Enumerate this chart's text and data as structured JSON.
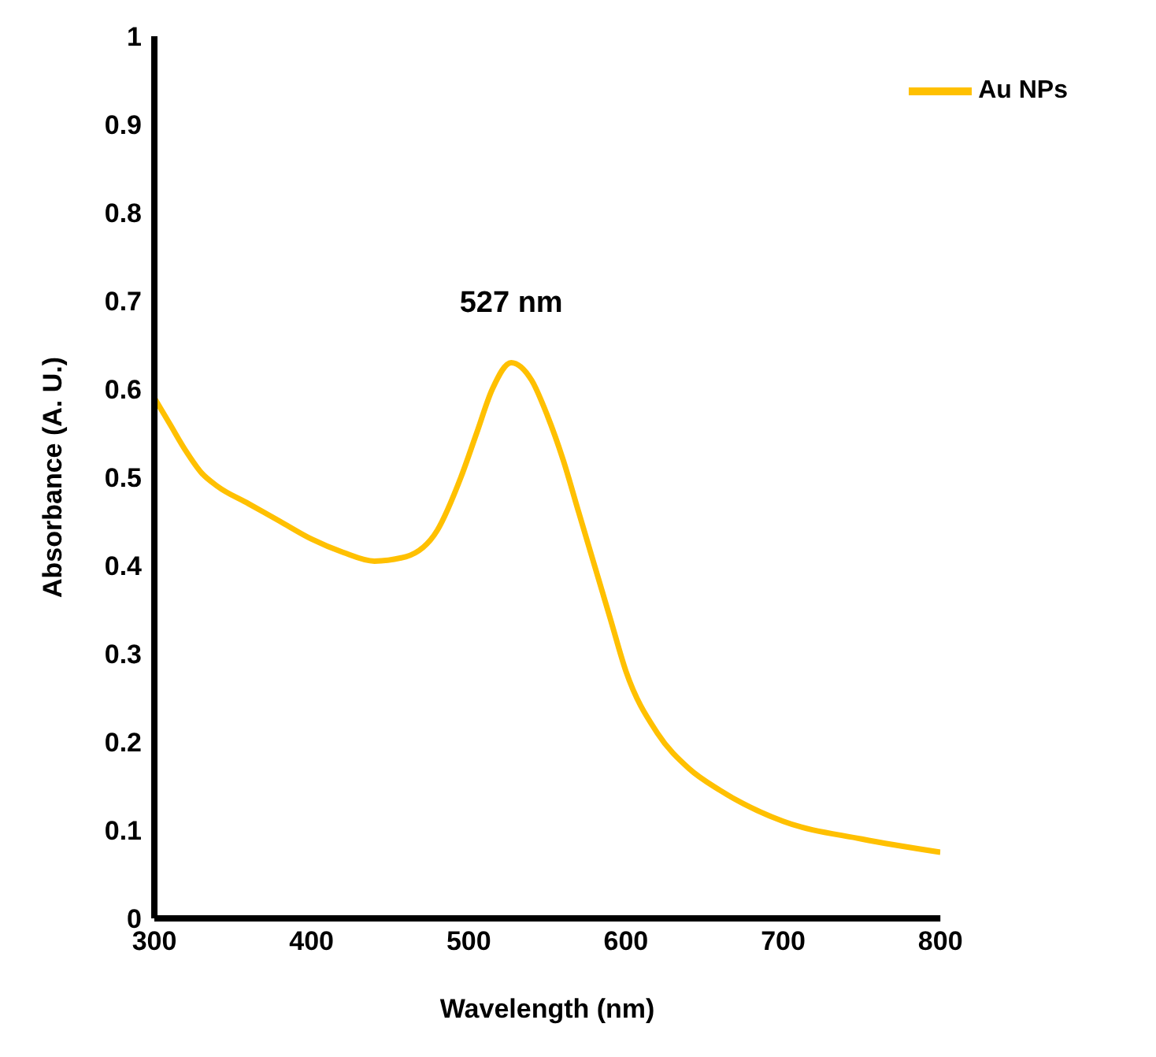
{
  "chart_data": {
    "type": "line",
    "xlabel": "Wavelength (nm)",
    "ylabel": "Absorbance (A. U.)",
    "x": [
      300,
      310,
      320,
      330,
      340,
      360,
      380,
      400,
      420,
      440,
      460,
      480,
      495,
      505,
      515,
      527,
      540,
      550,
      560,
      570,
      580,
      590,
      600,
      620,
      640,
      660,
      700,
      750,
      800
    ],
    "series": [
      {
        "name": "Au NPs",
        "color": "#ffc000",
        "values": [
          0.59,
          0.56,
          0.53,
          0.505,
          0.49,
          0.47,
          0.45,
          0.43,
          0.415,
          0.405,
          0.41,
          0.44,
          0.5,
          0.55,
          0.6,
          0.63,
          0.61,
          0.57,
          0.52,
          0.46,
          0.4,
          0.34,
          0.28,
          0.21,
          0.17,
          0.145,
          0.11,
          0.09,
          0.075
        ]
      }
    ],
    "xlim": [
      300,
      800
    ],
    "xticks": [
      300,
      400,
      500,
      600,
      700,
      800
    ],
    "ylim": [
      0,
      1
    ],
    "yticks": [
      0,
      0.1,
      0.2,
      0.3,
      0.4,
      0.5,
      0.6,
      0.7,
      0.8,
      0.9,
      1
    ],
    "annotations": [
      {
        "text": "527 nm",
        "x": 527,
        "y": 0.63
      }
    ],
    "grid": false,
    "legend": "top right",
    "marker": "none",
    "line_style": "solid"
  }
}
